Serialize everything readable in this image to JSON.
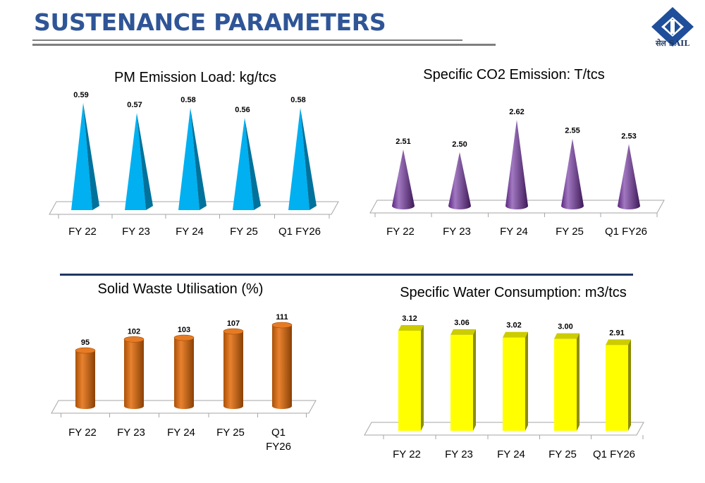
{
  "page": {
    "title": "SUSTENANCE PARAMETERS",
    "logo_text": "सेल SAIL",
    "colors": {
      "title": "#2f5597",
      "divider": "#1f3864",
      "logo": "#1f4e9a"
    }
  },
  "chart_data": [
    {
      "id": "pm",
      "type": "bar",
      "bar_shape": "pyramid",
      "title": "PM Emission Load: kg/tcs",
      "categories": [
        "FY 22",
        "FY 23",
        "FY 24",
        "FY 25",
        "Q1 FY26"
      ],
      "values": [
        0.59,
        0.57,
        0.58,
        0.56,
        0.58
      ],
      "labels": [
        "0.59",
        "0.57",
        "0.58",
        "0.56",
        "0.58"
      ],
      "color": "#00b0f0"
    },
    {
      "id": "co2",
      "type": "bar",
      "bar_shape": "cone",
      "title": "Specific CO2 Emission: T/tcs",
      "categories": [
        "FY 22",
        "FY 23",
        "FY 24",
        "FY 25",
        "Q1 FY26"
      ],
      "values": [
        2.51,
        2.5,
        2.62,
        2.55,
        2.53
      ],
      "labels": [
        "2.51",
        "2.50",
        "2.62",
        "2.55",
        "2.53"
      ],
      "color": "#7030a0"
    },
    {
      "id": "waste",
      "type": "bar",
      "bar_shape": "cylinder",
      "title": "Solid Waste Utilisation (%)",
      "categories": [
        "FY 22",
        "FY 23",
        "FY 24",
        "FY 25",
        "Q1 FY26"
      ],
      "values": [
        95,
        102,
        103,
        107,
        111
      ],
      "labels": [
        "95",
        "102",
        "103",
        "107",
        "111"
      ],
      "color": "#e46c0a"
    },
    {
      "id": "water",
      "type": "bar",
      "bar_shape": "box",
      "title": "Specific Water Consumption: m3/tcs",
      "categories": [
        "FY 22",
        "FY 23",
        "FY 24",
        "FY 25",
        "Q1 FY26"
      ],
      "values": [
        3.12,
        3.06,
        3.02,
        3.0,
        2.91
      ],
      "labels": [
        "3.12",
        "3.06",
        "3.02",
        "3.00",
        "2.91"
      ],
      "color": "#ffff00"
    }
  ]
}
